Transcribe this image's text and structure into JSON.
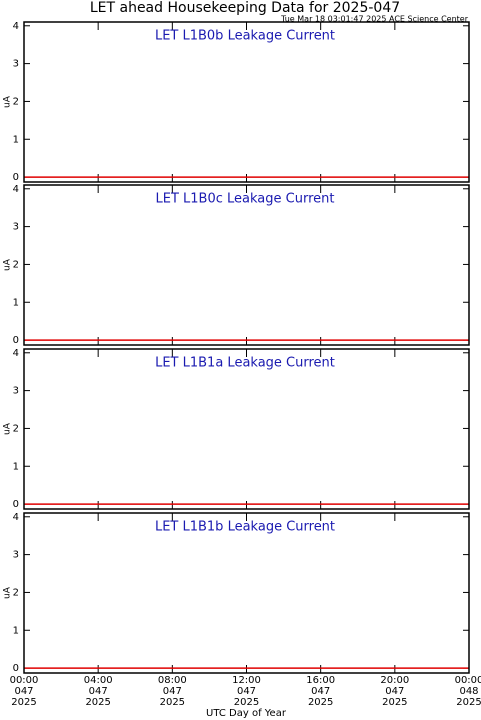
{
  "title": "LET ahead Housekeeping Data for 2025-047",
  "subtitle": "Tue Mar 18 03:01:47 2025 ACE Science Center",
  "x_axis": {
    "label": "UTC Day of Year",
    "xlim": [
      0,
      24
    ],
    "xticks": [
      {
        "value": 0,
        "label": [
          "00:00",
          "047",
          "2025"
        ]
      },
      {
        "value": 4,
        "label": [
          "04:00",
          "047",
          "2025"
        ]
      },
      {
        "value": 8,
        "label": [
          "08:00",
          "047",
          "2025"
        ]
      },
      {
        "value": 12,
        "label": [
          "12:00",
          "047",
          "2025"
        ]
      },
      {
        "value": 16,
        "label": [
          "16:00",
          "047",
          "2025"
        ]
      },
      {
        "value": 20,
        "label": [
          "20:00",
          "047",
          "2025"
        ]
      },
      {
        "value": 24,
        "label": [
          "00:00",
          "048",
          "2025"
        ]
      }
    ]
  },
  "chart_data": [
    {
      "type": "line",
      "title": "LET L1B0b Leakage Current",
      "ylabel": "uA",
      "ylim": [
        -0.13,
        4.1
      ],
      "yticks": [
        0,
        1,
        2,
        3,
        4
      ],
      "series": [
        {
          "color": "#e00000",
          "x": [
            0,
            24
          ],
          "values": [
            0,
            0
          ]
        }
      ]
    },
    {
      "type": "line",
      "title": "LET L1B0c Leakage Current",
      "ylabel": "uA",
      "ylim": [
        -0.13,
        4.1
      ],
      "yticks": [
        0,
        1,
        2,
        3,
        4
      ],
      "series": [
        {
          "color": "#e00000",
          "x": [
            0,
            24
          ],
          "values": [
            0,
            0
          ]
        }
      ]
    },
    {
      "type": "line",
      "title": "LET L1B1a Leakage Current",
      "ylabel": "uA",
      "ylim": [
        -0.13,
        4.1
      ],
      "yticks": [
        0,
        1,
        2,
        3,
        4
      ],
      "series": [
        {
          "color": "#e00000",
          "x": [
            0,
            24
          ],
          "values": [
            0,
            0
          ]
        }
      ]
    },
    {
      "type": "line",
      "title": "LET L1B1b Leakage Current",
      "ylabel": "uA",
      "ylim": [
        -0.13,
        4.1
      ],
      "yticks": [
        0,
        1,
        2,
        3,
        4
      ],
      "series": [
        {
          "color": "#e00000",
          "x": [
            0,
            24
          ],
          "values": [
            0,
            0
          ]
        }
      ]
    }
  ]
}
